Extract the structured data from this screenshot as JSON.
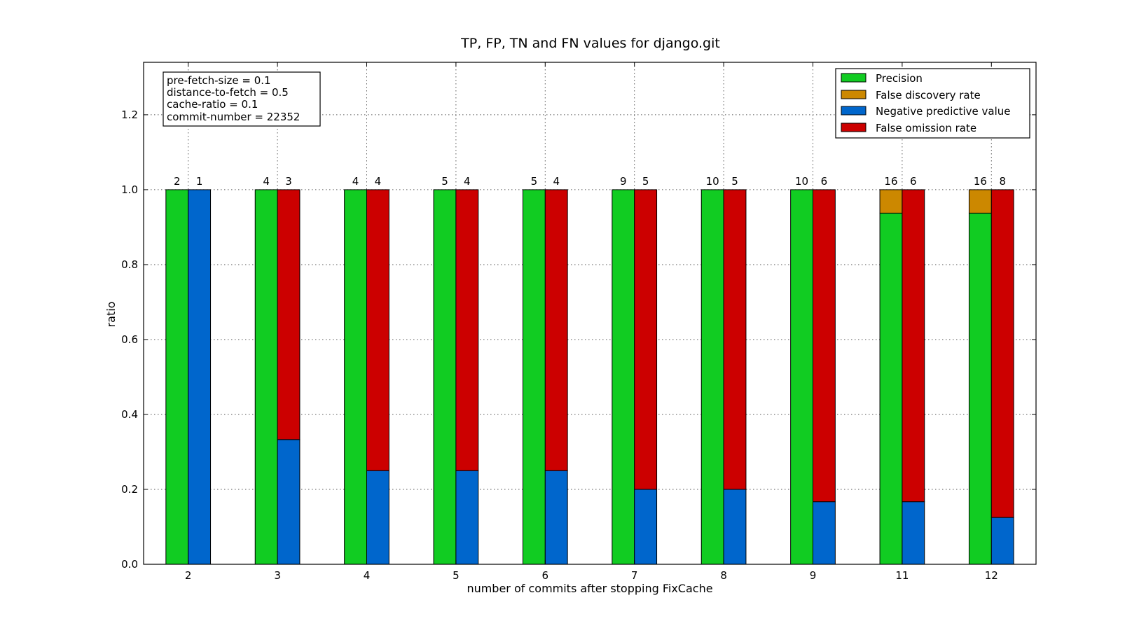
{
  "chart_data": {
    "type": "bar",
    "title": "TP, FP, TN and FN values for django.git",
    "xlabel": "number of commits after stopping FixCache",
    "ylabel": "ratio",
    "ylim": [
      0,
      1.34
    ],
    "yticks": [
      "0.0",
      "0.2",
      "0.4",
      "0.6",
      "0.8",
      "1.0",
      "1.2"
    ],
    "grid": true,
    "categories": [
      "2",
      "3",
      "4",
      "5",
      "6",
      "7",
      "8",
      "9",
      "11",
      "12"
    ],
    "series": [
      {
        "name": "Precision",
        "color": "#11cc22",
        "stack": "left",
        "values": [
          1.0,
          1.0,
          1.0,
          1.0,
          1.0,
          1.0,
          1.0,
          1.0,
          0.9375,
          0.9375
        ]
      },
      {
        "name": "False discovery rate",
        "color": "#cc8800",
        "stack": "left",
        "values": [
          0.0,
          0.0,
          0.0,
          0.0,
          0.0,
          0.0,
          0.0,
          0.0,
          0.0625,
          0.0625
        ]
      },
      {
        "name": "Negative predictive value",
        "color": "#0066cc",
        "stack": "right",
        "values": [
          1.0,
          0.333,
          0.25,
          0.25,
          0.25,
          0.2,
          0.2,
          0.167,
          0.167,
          0.125
        ]
      },
      {
        "name": "False omission rate",
        "color": "#cc0000",
        "stack": "right",
        "values": [
          0.0,
          0.667,
          0.75,
          0.75,
          0.75,
          0.8,
          0.8,
          0.833,
          0.833,
          0.875
        ]
      }
    ],
    "bar_labels_left": [
      "2",
      "4",
      "4",
      "5",
      "5",
      "9",
      "10",
      "10",
      "16",
      "16"
    ],
    "bar_labels_right": [
      "1",
      "3",
      "4",
      "4",
      "4",
      "5",
      "5",
      "6",
      "6",
      "8"
    ],
    "legend_position": "top-right",
    "parameters": [
      "pre-fetch-size = 0.1",
      "distance-to-fetch = 0.5",
      "cache-ratio = 0.1",
      "commit-number = 22352"
    ]
  }
}
